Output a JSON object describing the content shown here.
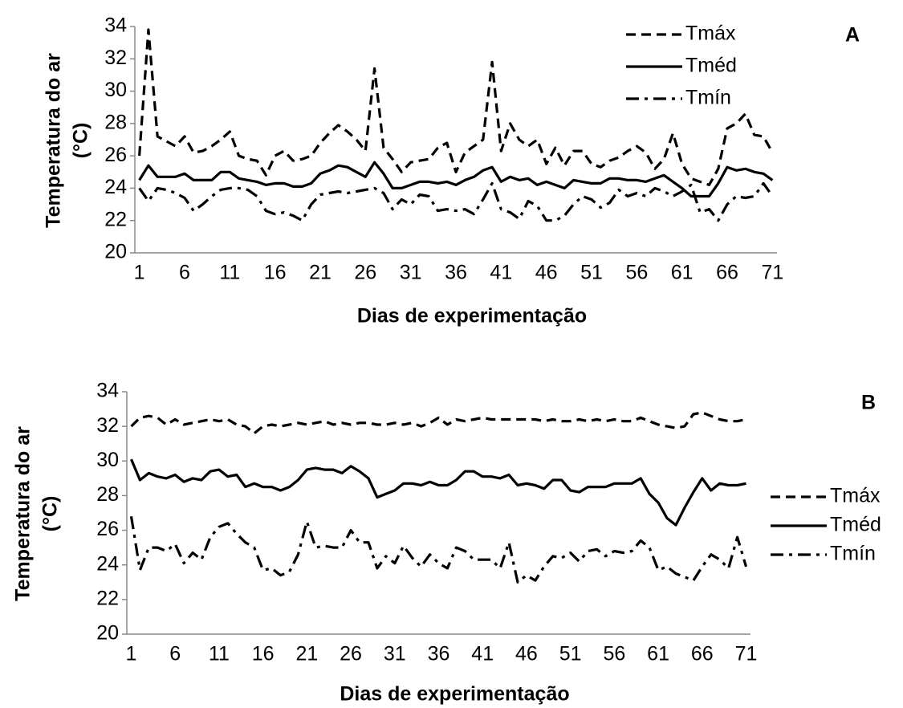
{
  "chart_data": [
    {
      "type": "line",
      "annotation": "A",
      "ylabel": [
        "Temperatura  do ar",
        "(°C)"
      ],
      "xlabel": "Dias de experimentação",
      "legend": "upper right",
      "categories": [
        "1",
        null,
        null,
        null,
        null,
        "6",
        null,
        null,
        null,
        null,
        "11",
        null,
        null,
        null,
        null,
        "16",
        null,
        null,
        null,
        null,
        "21",
        null,
        null,
        null,
        null,
        "26",
        null,
        null,
        null,
        null,
        "31",
        null,
        null,
        null,
        null,
        "36",
        null,
        null,
        null,
        null,
        "41",
        null,
        null,
        null,
        null,
        "46",
        null,
        null,
        null,
        null,
        "51",
        null,
        null,
        null,
        null,
        "56",
        null,
        null,
        null,
        null,
        "61",
        null,
        null,
        null,
        null,
        "66",
        null,
        null,
        null,
        null,
        "71"
      ],
      "ylim": [
        20,
        34
      ],
      "yticks": [
        20,
        22,
        24,
        26,
        28,
        30,
        32,
        34
      ],
      "series": [
        {
          "name": "Tmáx",
          "color": "#000000",
          "dash": "dashed",
          "values": [
            26,
            33.8,
            27.2,
            26.9,
            26.6,
            27.2,
            26.2,
            26.3,
            26.6,
            27,
            27.5,
            26,
            25.8,
            25.7,
            24.8,
            26,
            26.3,
            25.7,
            25.8,
            26,
            26.8,
            27.4,
            27.9,
            27.5,
            27,
            26.3,
            31.4,
            26.5,
            25.8,
            25,
            25.6,
            25.7,
            25.8,
            26.5,
            26.8,
            25,
            26.2,
            26.6,
            27,
            31.8,
            26.3,
            28,
            27,
            26.6,
            27,
            25.5,
            26.5,
            25.4,
            26.3,
            26.3,
            25.5,
            25.3,
            25.7,
            25.9,
            26.3,
            26.6,
            26.2,
            25.2,
            25.8,
            27.4,
            25.5,
            24.6,
            24.4,
            24.2,
            25.2,
            27.7,
            28,
            28.6,
            27.3,
            27.2,
            26.2
          ]
        },
        {
          "name": "Tméd",
          "color": "#000000",
          "dash": "solid",
          "values": [
            24.5,
            25.4,
            24.7,
            24.7,
            24.7,
            24.9,
            24.5,
            24.5,
            24.5,
            25,
            25,
            24.6,
            24.5,
            24.4,
            24.2,
            24.3,
            24.3,
            24.1,
            24.1,
            24.3,
            24.9,
            25.1,
            25.4,
            25.3,
            25,
            24.7,
            25.6,
            24.9,
            24,
            24,
            24.2,
            24.4,
            24.4,
            24.3,
            24.4,
            24.2,
            24.5,
            24.7,
            25.1,
            25.3,
            24.4,
            24.7,
            24.5,
            24.6,
            24.2,
            24.4,
            24.2,
            24,
            24.5,
            24.4,
            24.3,
            24.3,
            24.6,
            24.6,
            24.5,
            24.5,
            24.4,
            24.6,
            24.8,
            24.4,
            24,
            23.5,
            23.5,
            23.5,
            24.3,
            25.3,
            25.1,
            25.2,
            25,
            24.9,
            24.5
          ]
        },
        {
          "name": "Tmín",
          "color": "#000000",
          "dash": "dashdot",
          "values": [
            24,
            23.2,
            24,
            23.9,
            23.7,
            23.4,
            22.6,
            23,
            23.5,
            23.9,
            24,
            24,
            23.9,
            23.5,
            22.6,
            22.4,
            22.5,
            22.3,
            22,
            23,
            23.6,
            23.7,
            23.8,
            23.7,
            23.8,
            23.9,
            24,
            23.7,
            22.7,
            23.3,
            23,
            23.6,
            23.5,
            22.6,
            22.7,
            22.6,
            22.7,
            22.4,
            23.3,
            24.3,
            22.7,
            22.5,
            22.1,
            23.2,
            22.9,
            22,
            22,
            22.3,
            23,
            23.5,
            23.3,
            22.8,
            23.1,
            23.9,
            23.5,
            23.7,
            23.5,
            24,
            23.8,
            23.5,
            23.8,
            24.2,
            22.5,
            22.7,
            22,
            23,
            23.5,
            23.4,
            23.5,
            24.3,
            23.5
          ]
        }
      ]
    },
    {
      "type": "line",
      "annotation": "B",
      "ylabel": [
        "Temperatura  do ar",
        "(°C)"
      ],
      "xlabel": "Dias de experimentação",
      "legend": "right",
      "categories": [
        "1",
        null,
        null,
        null,
        null,
        "6",
        null,
        null,
        null,
        null,
        "11",
        null,
        null,
        null,
        null,
        "16",
        null,
        null,
        null,
        null,
        "21",
        null,
        null,
        null,
        null,
        "26",
        null,
        null,
        null,
        null,
        "31",
        null,
        null,
        null,
        null,
        "36",
        null,
        null,
        null,
        null,
        "41",
        null,
        null,
        null,
        null,
        "46",
        null,
        null,
        null,
        null,
        "51",
        null,
        null,
        null,
        null,
        "56",
        null,
        null,
        null,
        null,
        "61",
        null,
        null,
        null,
        null,
        "66",
        null,
        null,
        null,
        null,
        "71"
      ],
      "ylim": [
        20,
        34
      ],
      "yticks": [
        20,
        22,
        24,
        26,
        28,
        30,
        32,
        34
      ],
      "series": [
        {
          "name": "Tmáx",
          "color": "#000000",
          "dash": "dashed",
          "values": [
            32,
            32.5,
            32.6,
            32.5,
            32.1,
            32.4,
            32.1,
            32.2,
            32.3,
            32.4,
            32.3,
            32.4,
            32.1,
            32,
            31.6,
            32,
            32.1,
            32,
            32.1,
            32.2,
            32.1,
            32.2,
            32.3,
            32.1,
            32.2,
            32.1,
            32.2,
            32.2,
            32.1,
            32.1,
            32.2,
            32.1,
            32.2,
            32,
            32.2,
            32.5,
            32.1,
            32.4,
            32.3,
            32.4,
            32.5,
            32.4,
            32.4,
            32.4,
            32.4,
            32.4,
            32.4,
            32.3,
            32.4,
            32.3,
            32.3,
            32.4,
            32.3,
            32.4,
            32.3,
            32.4,
            32.3,
            32.3,
            32.5,
            32.3,
            32.1,
            32,
            31.9,
            32,
            32.7,
            32.8,
            32.6,
            32.4,
            32.3,
            32.3,
            32.4
          ]
        },
        {
          "name": "Tméd",
          "color": "#000000",
          "dash": "solid",
          "values": [
            30.1,
            28.9,
            29.3,
            29.1,
            29,
            29.2,
            28.8,
            29,
            28.9,
            29.4,
            29.5,
            29.1,
            29.2,
            28.5,
            28.7,
            28.5,
            28.5,
            28.3,
            28.5,
            28.9,
            29.5,
            29.6,
            29.5,
            29.5,
            29.3,
            29.7,
            29.4,
            29,
            27.9,
            28.1,
            28.3,
            28.7,
            28.7,
            28.6,
            28.8,
            28.6,
            28.6,
            28.9,
            29.4,
            29.4,
            29.1,
            29.1,
            29,
            29.2,
            28.6,
            28.7,
            28.6,
            28.4,
            28.9,
            28.9,
            28.3,
            28.2,
            28.5,
            28.5,
            28.5,
            28.7,
            28.7,
            28.7,
            29,
            28.1,
            27.6,
            26.7,
            26.3,
            27.3,
            28.2,
            29,
            28.3,
            28.7,
            28.6,
            28.6,
            28.7
          ]
        },
        {
          "name": "Tmín",
          "color": "#000000",
          "dash": "dashdot",
          "values": [
            26.8,
            23.7,
            25,
            25,
            24.8,
            25.2,
            24.1,
            24.7,
            24.3,
            25.6,
            26.2,
            26.4,
            25.8,
            25.3,
            25,
            23.7,
            23.8,
            23.4,
            23.6,
            24.6,
            26.5,
            25,
            25.1,
            25,
            25,
            26,
            25.3,
            25.3,
            23.8,
            24.5,
            24.1,
            25.1,
            24.4,
            23.9,
            24.6,
            24.1,
            23.8,
            25,
            24.8,
            24.3,
            24.3,
            24.3,
            23.8,
            25.3,
            23,
            23.4,
            23.1,
            23.9,
            24.5,
            24.4,
            24.7,
            24.2,
            24.8,
            24.9,
            24.5,
            24.8,
            24.7,
            24.8,
            25.4,
            25,
            23.7,
            23.9,
            23.5,
            23.3,
            23.1,
            23.9,
            24.6,
            24.3,
            23.8,
            25.6,
            23.9
          ]
        }
      ]
    }
  ]
}
